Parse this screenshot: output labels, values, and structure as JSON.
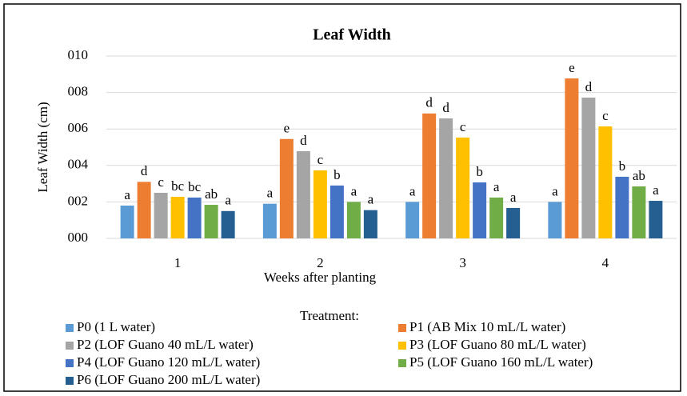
{
  "chart_data": {
    "type": "bar",
    "title": "Leaf Width",
    "x_label": "Weeks after planting",
    "y_label": "Leaf Width (cm)",
    "categories": [
      "1",
      "2",
      "3",
      "4"
    ],
    "ylim": [
      0,
      10
    ],
    "yticks": [
      {
        "value": 0,
        "label": "000"
      },
      {
        "value": 2,
        "label": "002"
      },
      {
        "value": 4,
        "label": "004"
      },
      {
        "value": 6,
        "label": "006"
      },
      {
        "value": 8,
        "label": "008"
      },
      {
        "value": 10,
        "label": "010"
      }
    ],
    "grid": true,
    "legend_title": "Treatment:",
    "legend_position": "bottom",
    "series": [
      {
        "name": "P0 (1 L water)",
        "color": "#5b9bd5",
        "values": [
          1.8,
          1.9,
          2.0,
          2.0
        ],
        "annotations": [
          "a",
          "a",
          "a",
          "a"
        ]
      },
      {
        "name": "P1 (AB Mix 10 mL/L water)",
        "color": "#ed7d31",
        "values": [
          3.1,
          5.45,
          6.85,
          8.77
        ],
        "annotations": [
          "d",
          "e",
          "d",
          "e"
        ]
      },
      {
        "name": "P2 (LOF Guano 40 mL/L water)",
        "color": "#a5a5a5",
        "values": [
          2.5,
          4.78,
          6.58,
          7.72
        ],
        "annotations": [
          "c",
          "d",
          "d",
          "d"
        ]
      },
      {
        "name": "P3 (LOF Guano 80 mL/L water)",
        "color": "#ffc000",
        "values": [
          2.28,
          3.73,
          5.53,
          6.14
        ],
        "annotations": [
          "bc",
          "c",
          "c",
          "c"
        ]
      },
      {
        "name": "P4 (LOF Guano 120 mL/L water)",
        "color": "#4472c4",
        "values": [
          2.24,
          2.9,
          3.07,
          3.38
        ],
        "annotations": [
          "bc",
          "b",
          "b",
          "b"
        ]
      },
      {
        "name": "P5 (LOF Guano 160 mL/L water)",
        "color": "#70ad47",
        "values": [
          1.84,
          2.0,
          2.24,
          2.85
        ],
        "annotations": [
          "ab",
          "a",
          "a",
          "ab"
        ]
      },
      {
        "name": "P6 (LOF Guano 200 mL/L water)",
        "color": "#255e91",
        "values": [
          1.5,
          1.55,
          1.67,
          2.06
        ],
        "annotations": [
          "a",
          "a",
          "a",
          "a"
        ]
      }
    ]
  }
}
